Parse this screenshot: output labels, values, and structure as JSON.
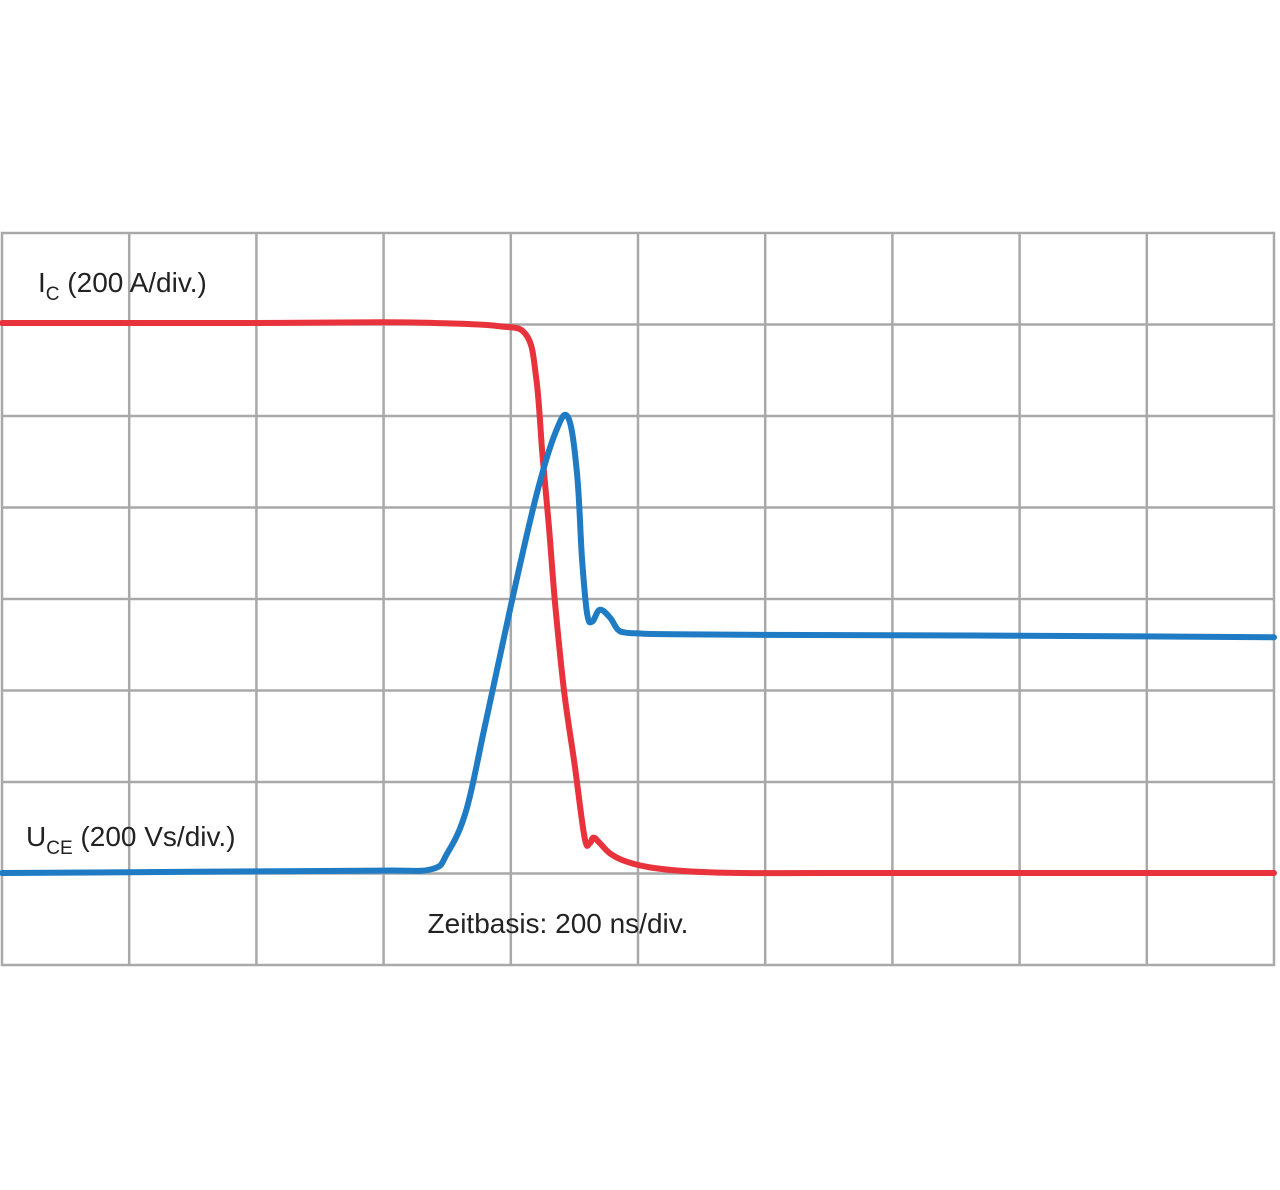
{
  "chart_data": {
    "type": "line",
    "x_unit": "div",
    "y_unit": "div",
    "xlim": [
      0,
      10
    ],
    "ylim": [
      0,
      8
    ],
    "grid": true,
    "xlabel": "Zeitbasis: 200 ns/div.",
    "series": [
      {
        "name_main": "I",
        "name_sub": "C",
        "name_rest": " (200 A/div.)",
        "color": "#e8323c",
        "x": [
          0,
          1,
          2,
          3,
          3.4,
          3.9,
          4.12,
          4.2,
          4.25,
          4.3,
          4.35,
          4.42,
          4.5,
          4.58,
          4.62,
          4.65,
          4.7,
          4.78,
          4.9,
          5.1,
          5.4,
          5.8,
          6.5,
          8,
          10
        ],
        "y": [
          7.0,
          7.0,
          7.0,
          7.01,
          7.0,
          6.96,
          6.85,
          6.3,
          5.3,
          4.4,
          3.4,
          2.3,
          1.4,
          0.45,
          0.38,
          0.45,
          0.38,
          0.25,
          0.15,
          0.07,
          0.02,
          0.0,
          0.0,
          0.0,
          0.0
        ]
      },
      {
        "name_main": "U",
        "name_sub": "CE",
        "name_rest": " (200 Vs/div.)",
        "color": "#1e7bc4",
        "x": [
          0,
          1,
          2,
          3,
          3.38,
          3.5,
          3.65,
          3.8,
          4.0,
          4.2,
          4.35,
          4.45,
          4.52,
          4.56,
          4.6,
          4.64,
          4.7,
          4.78,
          4.84,
          4.9,
          5.0,
          5.2,
          6,
          8,
          10
        ],
        "y": [
          0.0,
          0.01,
          0.02,
          0.03,
          0.05,
          0.25,
          0.8,
          1.9,
          3.4,
          4.8,
          5.6,
          5.8,
          5.1,
          4.0,
          3.3,
          3.2,
          3.35,
          3.25,
          3.1,
          3.06,
          3.05,
          3.04,
          3.03,
          3.02,
          3.0
        ]
      }
    ]
  }
}
